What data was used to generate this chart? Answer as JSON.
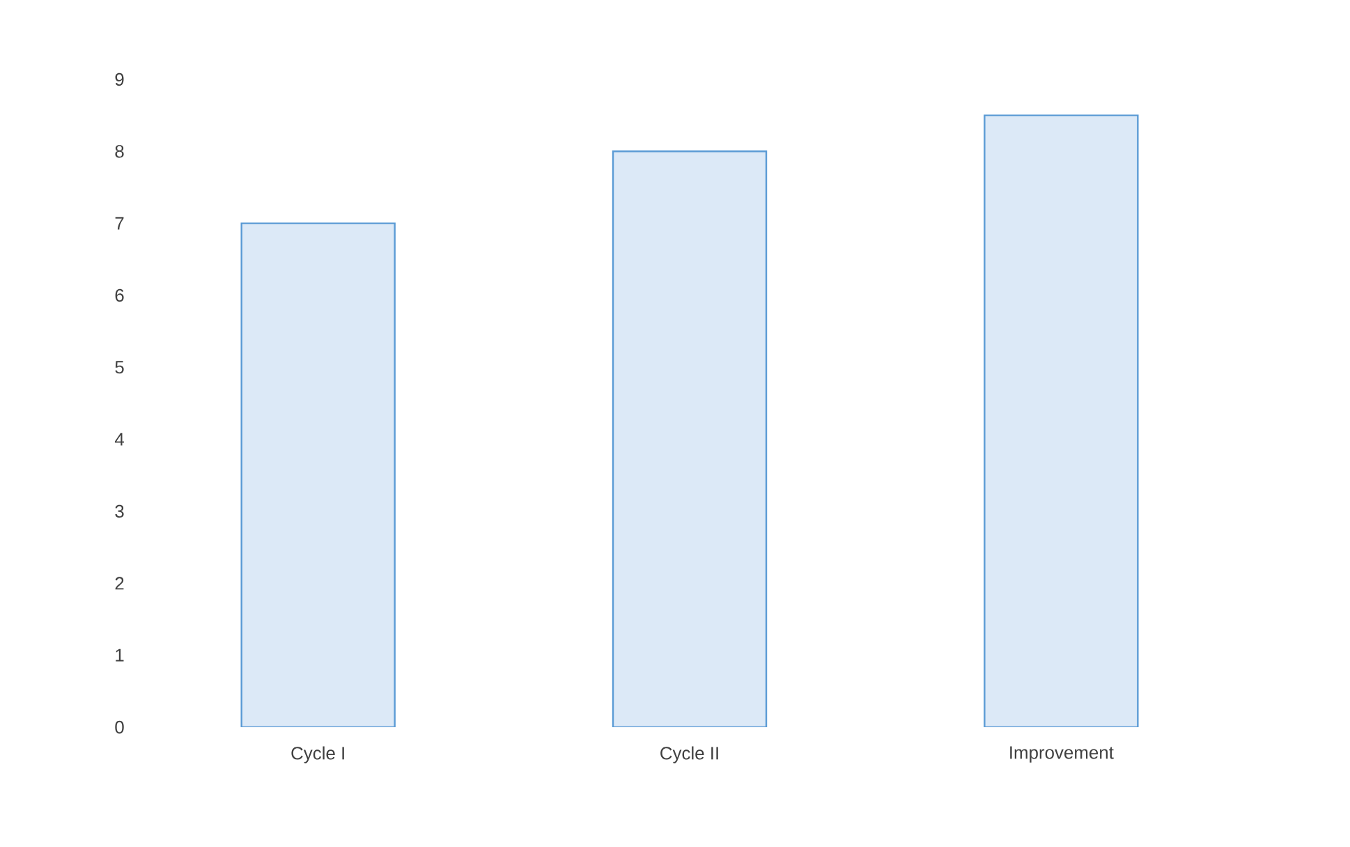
{
  "chart_data": {
    "type": "bar",
    "categories": [
      "Cycle I",
      "Cycle II",
      "Improvement"
    ],
    "values": [
      7.0,
      8.0,
      8.5
    ],
    "color": "#dce9f7",
    "ylim": [
      0,
      9
    ],
    "yticks": [
      0,
      1,
      2,
      3,
      4,
      5,
      6,
      7,
      8,
      9
    ]
  }
}
